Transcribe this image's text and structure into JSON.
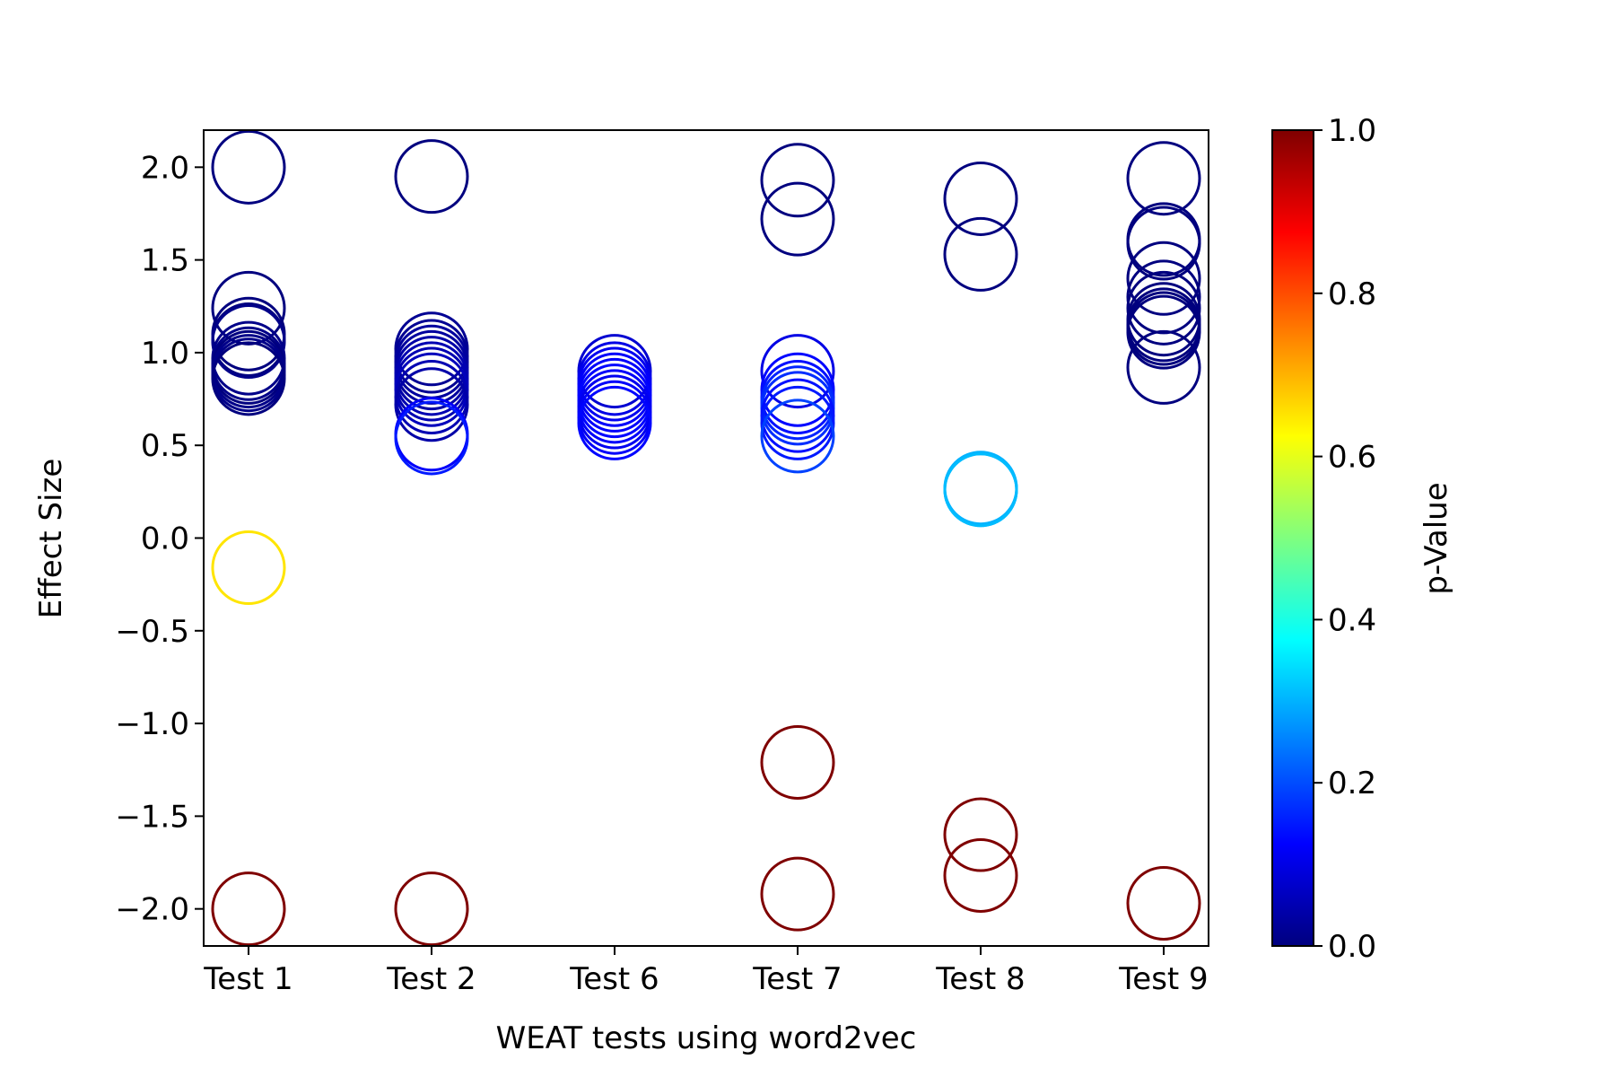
{
  "chart_data": {
    "type": "scatter",
    "title": "",
    "xlabel": "WEAT tests using word2vec",
    "ylabel": "Effect Size",
    "categories": [
      "Test 1",
      "Test 2",
      "Test 6",
      "Test 7",
      "Test 8",
      "Test 9"
    ],
    "ylim": [
      -2.2,
      2.2
    ],
    "yticks": [
      "2.0",
      "1.5",
      "1.0",
      "0.5",
      "0.0",
      "−0.5",
      "−1.0",
      "−1.5",
      "−2.0"
    ],
    "ytick_values": [
      2.0,
      1.5,
      1.0,
      0.5,
      0.0,
      -0.5,
      -1.0,
      -1.5,
      -2.0
    ],
    "grid": false,
    "marker": "hollow-circle",
    "colorbar": {
      "label": "p-Value",
      "colormap": "jet",
      "range": [
        0.0,
        1.0
      ],
      "ticks": [
        "1.0",
        "0.8",
        "0.6",
        "0.4",
        "0.2",
        "0.0"
      ],
      "tick_values": [
        1.0,
        0.8,
        0.6,
        0.4,
        0.2,
        0.0
      ],
      "stops": [
        "#00007f",
        "#0000ff",
        "#007fff",
        "#00ffff",
        "#7fff7f",
        "#ffff00",
        "#ff7f00",
        "#ff0000",
        "#7f0000"
      ]
    },
    "points": [
      {
        "test": "Test 1",
        "y": 2.0,
        "p": 0.0
      },
      {
        "test": "Test 1",
        "y": 1.24,
        "p": 0.0
      },
      {
        "test": "Test 1",
        "y": 1.1,
        "p": 0.0
      },
      {
        "test": "Test 1",
        "y": 1.07,
        "p": 0.0
      },
      {
        "test": "Test 1",
        "y": 1.06,
        "p": 0.01
      },
      {
        "test": "Test 1",
        "y": 0.97,
        "p": 0.01
      },
      {
        "test": "Test 1",
        "y": 0.94,
        "p": 0.01
      },
      {
        "test": "Test 1",
        "y": 0.92,
        "p": 0.0
      },
      {
        "test": "Test 1",
        "y": 0.9,
        "p": 0.01
      },
      {
        "test": "Test 1",
        "y": 0.88,
        "p": 0.01
      },
      {
        "test": "Test 1",
        "y": 0.86,
        "p": 0.0
      },
      {
        "test": "Test 1",
        "y": -0.16,
        "p": 0.65
      },
      {
        "test": "Test 1",
        "y": -2.0,
        "p": 1.0
      },
      {
        "test": "Test 2",
        "y": 1.95,
        "p": 0.0
      },
      {
        "test": "Test 2",
        "y": 1.02,
        "p": 0.02
      },
      {
        "test": "Test 2",
        "y": 0.98,
        "p": 0.02
      },
      {
        "test": "Test 2",
        "y": 0.95,
        "p": 0.03
      },
      {
        "test": "Test 2",
        "y": 0.92,
        "p": 0.03
      },
      {
        "test": "Test 2",
        "y": 0.89,
        "p": 0.04
      },
      {
        "test": "Test 2",
        "y": 0.86,
        "p": 0.05
      },
      {
        "test": "Test 2",
        "y": 0.83,
        "p": 0.05
      },
      {
        "test": "Test 2",
        "y": 0.8,
        "p": 0.06
      },
      {
        "test": "Test 2",
        "y": 0.76,
        "p": 0.05
      },
      {
        "test": "Test 2",
        "y": 0.72,
        "p": 0.04
      },
      {
        "test": "Test 2",
        "y": 0.56,
        "p": 0.12
      },
      {
        "test": "Test 2",
        "y": 0.54,
        "p": 0.15
      },
      {
        "test": "Test 2",
        "y": -2.0,
        "p": 1.0
      },
      {
        "test": "Test 6",
        "y": 0.9,
        "p": 0.08
      },
      {
        "test": "Test 6",
        "y": 0.86,
        "p": 0.1
      },
      {
        "test": "Test 6",
        "y": 0.83,
        "p": 0.11
      },
      {
        "test": "Test 6",
        "y": 0.8,
        "p": 0.12
      },
      {
        "test": "Test 6",
        "y": 0.77,
        "p": 0.12
      },
      {
        "test": "Test 6",
        "y": 0.74,
        "p": 0.13
      },
      {
        "test": "Test 6",
        "y": 0.71,
        "p": 0.12
      },
      {
        "test": "Test 6",
        "y": 0.68,
        "p": 0.11
      },
      {
        "test": "Test 6",
        "y": 0.65,
        "p": 0.12
      },
      {
        "test": "Test 6",
        "y": 0.62,
        "p": 0.13
      },
      {
        "test": "Test 7",
        "y": 1.93,
        "p": 0.0
      },
      {
        "test": "Test 7",
        "y": 1.72,
        "p": 0.0
      },
      {
        "test": "Test 7",
        "y": 0.9,
        "p": 0.1
      },
      {
        "test": "Test 7",
        "y": 0.8,
        "p": 0.13
      },
      {
        "test": "Test 7",
        "y": 0.76,
        "p": 0.14
      },
      {
        "test": "Test 7",
        "y": 0.73,
        "p": 0.16
      },
      {
        "test": "Test 7",
        "y": 0.7,
        "p": 0.17
      },
      {
        "test": "Test 7",
        "y": 0.66,
        "p": 0.14
      },
      {
        "test": "Test 7",
        "y": 0.62,
        "p": 0.15
      },
      {
        "test": "Test 7",
        "y": 0.55,
        "p": 0.19
      },
      {
        "test": "Test 7",
        "y": -1.21,
        "p": 1.0
      },
      {
        "test": "Test 7",
        "y": -1.92,
        "p": 1.0
      },
      {
        "test": "Test 8",
        "y": 1.83,
        "p": 0.0
      },
      {
        "test": "Test 8",
        "y": 1.53,
        "p": 0.0
      },
      {
        "test": "Test 8",
        "y": 0.27,
        "p": 0.3
      },
      {
        "test": "Test 8",
        "y": 0.26,
        "p": 0.3
      },
      {
        "test": "Test 8",
        "y": 0.26,
        "p": 0.31
      },
      {
        "test": "Test 8",
        "y": -1.6,
        "p": 1.0
      },
      {
        "test": "Test 8",
        "y": -1.82,
        "p": 1.0
      },
      {
        "test": "Test 9",
        "y": 1.94,
        "p": 0.0
      },
      {
        "test": "Test 9",
        "y": 1.61,
        "p": 0.0
      },
      {
        "test": "Test 9",
        "y": 1.59,
        "p": 0.0
      },
      {
        "test": "Test 9",
        "y": 1.4,
        "p": 0.0
      },
      {
        "test": "Test 9",
        "y": 1.3,
        "p": 0.0
      },
      {
        "test": "Test 9",
        "y": 1.24,
        "p": 0.0
      },
      {
        "test": "Test 9",
        "y": 1.18,
        "p": 0.0
      },
      {
        "test": "Test 9",
        "y": 1.15,
        "p": 0.0
      },
      {
        "test": "Test 9",
        "y": 1.13,
        "p": 0.0
      },
      {
        "test": "Test 9",
        "y": 1.11,
        "p": 0.0
      },
      {
        "test": "Test 9",
        "y": 0.92,
        "p": 0.0
      },
      {
        "test": "Test 9",
        "y": -1.97,
        "p": 1.0
      }
    ]
  }
}
